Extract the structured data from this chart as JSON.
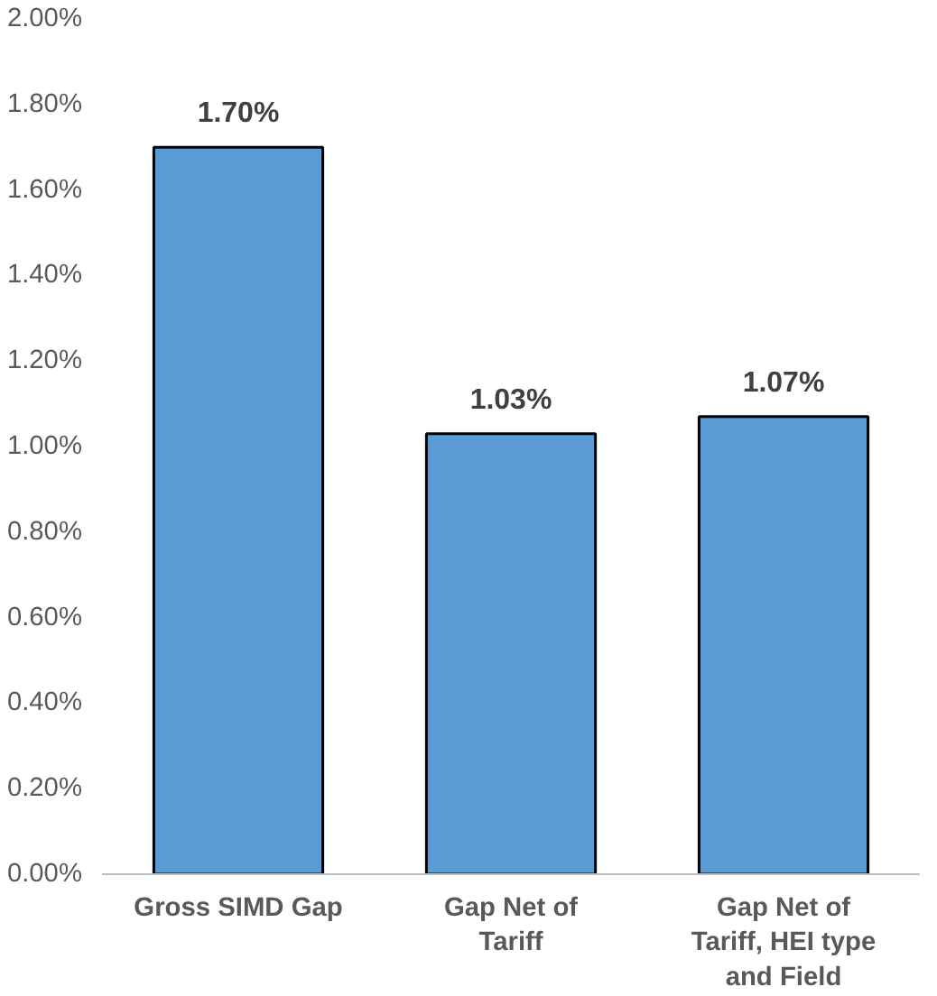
{
  "chart_data": {
    "type": "bar",
    "categories": [
      "Gross SIMD Gap",
      "Gap Net of Tariff",
      "Gap Net of Tariff, HEI type and Field"
    ],
    "values": [
      1.7,
      1.03,
      1.07
    ],
    "value_labels": [
      "1.70%",
      "1.03%",
      "1.07%"
    ],
    "color": "#5b9bd5",
    "ylim": [
      0,
      2.0
    ],
    "yticks": [
      {
        "value": 0,
        "label": "0.00%"
      },
      {
        "value": 0.2,
        "label": "0.20%"
      },
      {
        "value": 0.4,
        "label": "0.40%"
      },
      {
        "value": 0.6,
        "label": "0.60%"
      },
      {
        "value": 0.8,
        "label": "0.80%"
      },
      {
        "value": 1.0,
        "label": "1.00%"
      },
      {
        "value": 1.2,
        "label": "1.20%"
      },
      {
        "value": 1.4,
        "label": "1.40%"
      },
      {
        "value": 1.6,
        "label": "1.60%"
      },
      {
        "value": 1.8,
        "label": "1.80%"
      },
      {
        "value": 2.0,
        "label": "2.00%"
      }
    ],
    "grid": false
  }
}
